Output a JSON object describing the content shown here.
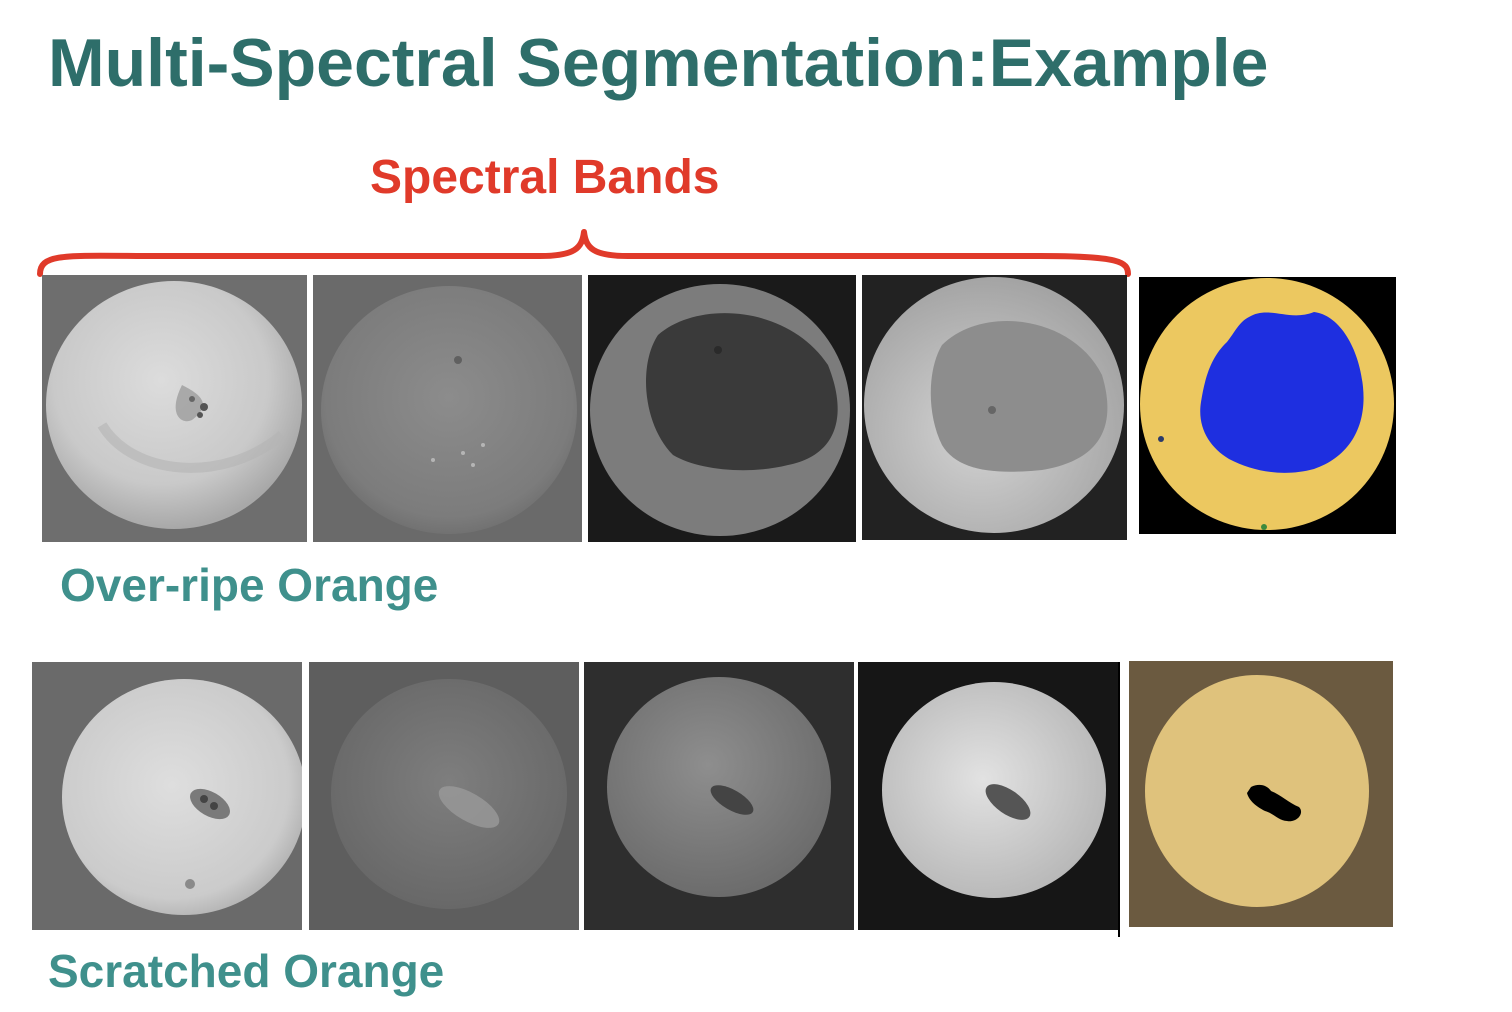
{
  "slide": {
    "title": "Multi-Spectral Segmentation:Example",
    "bands_label": "Spectral Bands",
    "rows": [
      {
        "label": "Over-ripe Orange"
      },
      {
        "label": "Scratched Orange"
      }
    ]
  },
  "colors": {
    "title": "#2e6e6a",
    "bands_label": "#e03a2a",
    "row_label": "#3f908c",
    "segment_yellow": "#ecc860",
    "segment_blue": "#1e2fe0",
    "segment_tan": "#dfc27c",
    "segment_background": "#6b5a40"
  }
}
